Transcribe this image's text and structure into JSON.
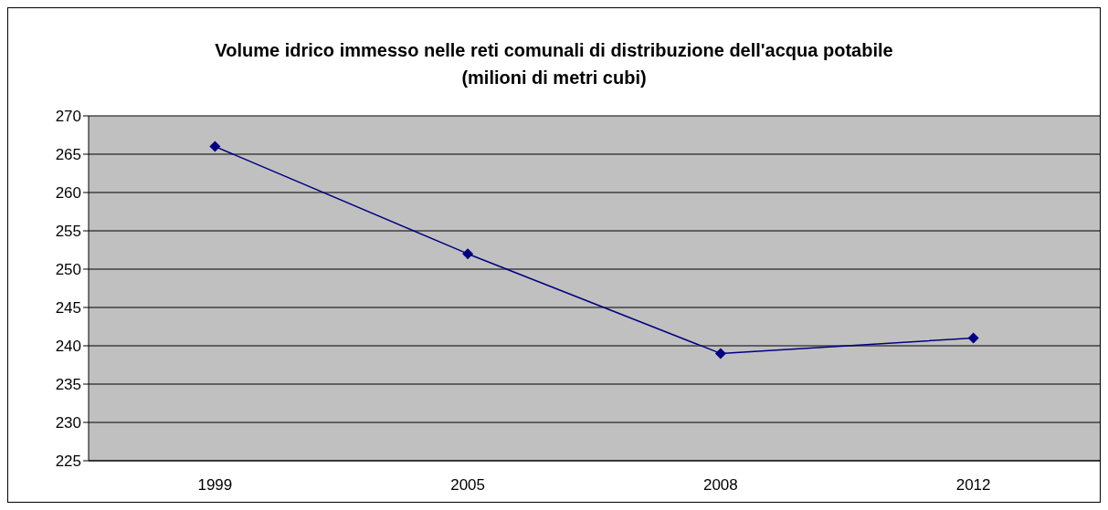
{
  "chart_data": {
    "type": "line",
    "title": "Volume idrico immesso nelle reti comunali di distribuzione dell'acqua potabile (milioni di metri cubi)",
    "categories": [
      "1999",
      "2005",
      "2008",
      "2012"
    ],
    "series": [
      {
        "color": "#000080",
        "values": [
          266,
          252,
          239,
          241
        ]
      }
    ],
    "ylim": [
      225,
      270
    ],
    "yticks": [
      225,
      230,
      235,
      240,
      245,
      250,
      255,
      260,
      265,
      270
    ],
    "grid": "y",
    "marker": "diamond",
    "line_style": "solid"
  }
}
